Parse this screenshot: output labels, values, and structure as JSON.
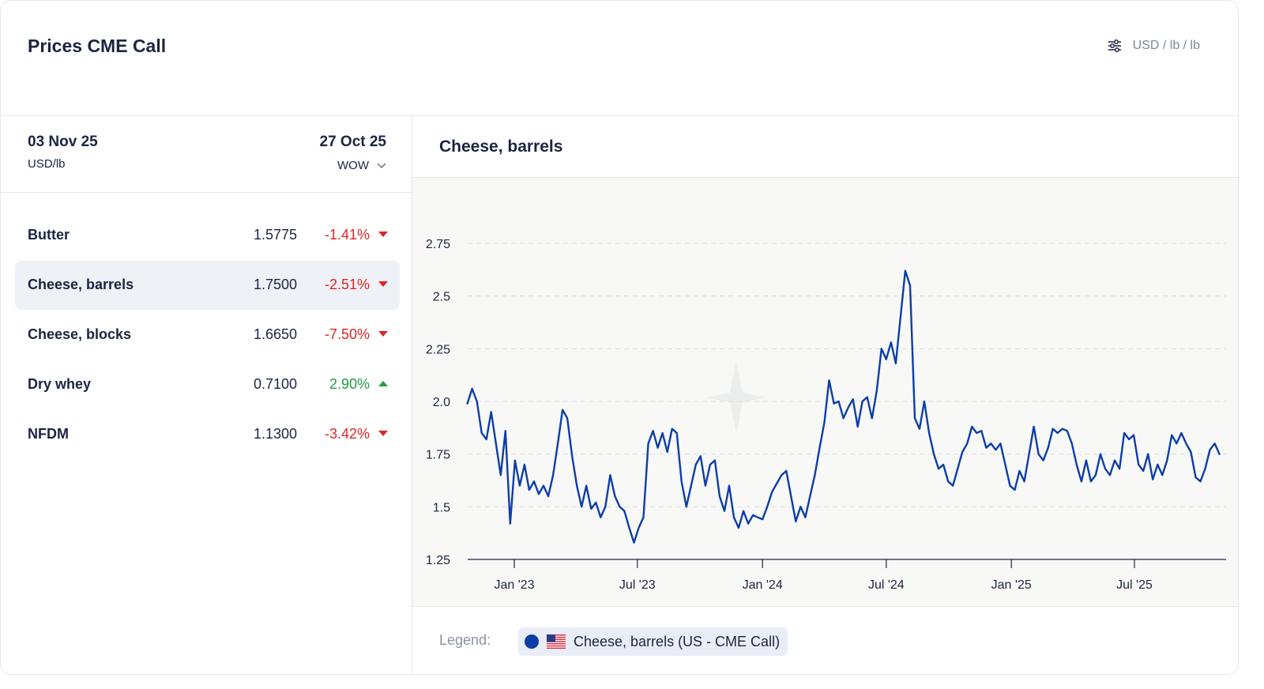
{
  "header": {
    "title": "Prices CME Call",
    "units": "USD / lb / lb"
  },
  "panel": {
    "current_date": "03 Nov 25",
    "unit": "USD/lb",
    "compare_date": "27 Oct 25",
    "compare_mode": "WOW"
  },
  "rows": [
    {
      "name": "Butter",
      "price": "1.5775",
      "change": "-1.41%",
      "direction": "down"
    },
    {
      "name": "Cheese, barrels",
      "price": "1.7500",
      "change": "-2.51%",
      "direction": "down",
      "selected": true
    },
    {
      "name": "Cheese, blocks",
      "price": "1.6650",
      "change": "-7.50%",
      "direction": "down"
    },
    {
      "name": "Dry whey",
      "price": "0.7100",
      "change": "2.90%",
      "direction": "up"
    },
    {
      "name": "NFDM",
      "price": "1.1300",
      "change": "-3.42%",
      "direction": "down"
    }
  ],
  "chart": {
    "title": "Cheese, barrels"
  },
  "legend": {
    "label": "Legend:",
    "series": "Cheese, barrels (US - CME Call)",
    "icon": "us-flag-icon"
  },
  "colors": {
    "series": "#0d3ea6",
    "negative": "#e02424",
    "positive": "#1f9d3e"
  },
  "chart_data": {
    "type": "line",
    "title": "Cheese, barrels",
    "ylim": [
      1.25,
      2.75
    ],
    "yticks": [
      "1.25",
      "1.5",
      "1.75",
      "2.0",
      "2.25",
      "2.5",
      "2.75"
    ],
    "xticks": [
      "Jan '23",
      "Jul '23",
      "Jan '24",
      "Jul '24",
      "Jan '25",
      "Jul '25"
    ],
    "xtick_dates": [
      "2023-01-01",
      "2023-07-01",
      "2024-01-01",
      "2024-07-01",
      "2025-01-01",
      "2025-07-01"
    ],
    "grid": true,
    "series": [
      {
        "name": "Cheese, barrels (US - CME Call)",
        "points": [
          [
            "2022-10-24",
            1.99
          ],
          [
            "2022-10-31",
            2.06
          ],
          [
            "2022-11-07",
            2.0
          ],
          [
            "2022-11-14",
            1.85
          ],
          [
            "2022-11-21",
            1.82
          ],
          [
            "2022-11-28",
            1.95
          ],
          [
            "2022-12-05",
            1.8
          ],
          [
            "2022-12-12",
            1.65
          ],
          [
            "2022-12-19",
            1.86
          ],
          [
            "2022-12-26",
            1.42
          ],
          [
            "2023-01-02",
            1.72
          ],
          [
            "2023-01-09",
            1.6
          ],
          [
            "2023-01-16",
            1.7
          ],
          [
            "2023-01-23",
            1.58
          ],
          [
            "2023-01-30",
            1.62
          ],
          [
            "2023-02-06",
            1.56
          ],
          [
            "2023-02-13",
            1.6
          ],
          [
            "2023-02-20",
            1.55
          ],
          [
            "2023-02-27",
            1.65
          ],
          [
            "2023-03-06",
            1.8
          ],
          [
            "2023-03-13",
            1.96
          ],
          [
            "2023-03-20",
            1.92
          ],
          [
            "2023-03-27",
            1.74
          ],
          [
            "2023-04-03",
            1.6
          ],
          [
            "2023-04-10",
            1.5
          ],
          [
            "2023-04-17",
            1.6
          ],
          [
            "2023-04-24",
            1.49
          ],
          [
            "2023-05-01",
            1.52
          ],
          [
            "2023-05-08",
            1.45
          ],
          [
            "2023-05-15",
            1.5
          ],
          [
            "2023-05-22",
            1.65
          ],
          [
            "2023-05-29",
            1.55
          ],
          [
            "2023-06-05",
            1.5
          ],
          [
            "2023-06-12",
            1.48
          ],
          [
            "2023-06-19",
            1.4
          ],
          [
            "2023-06-26",
            1.33
          ],
          [
            "2023-07-03",
            1.4
          ],
          [
            "2023-07-10",
            1.45
          ],
          [
            "2023-07-17",
            1.8
          ],
          [
            "2023-07-24",
            1.86
          ],
          [
            "2023-07-31",
            1.78
          ],
          [
            "2023-08-07",
            1.85
          ],
          [
            "2023-08-14",
            1.76
          ],
          [
            "2023-08-21",
            1.87
          ],
          [
            "2023-08-28",
            1.85
          ],
          [
            "2023-09-04",
            1.62
          ],
          [
            "2023-09-11",
            1.5
          ],
          [
            "2023-09-18",
            1.6
          ],
          [
            "2023-09-25",
            1.7
          ],
          [
            "2023-10-02",
            1.74
          ],
          [
            "2023-10-09",
            1.6
          ],
          [
            "2023-10-16",
            1.7
          ],
          [
            "2023-10-23",
            1.72
          ],
          [
            "2023-10-30",
            1.55
          ],
          [
            "2023-11-06",
            1.48
          ],
          [
            "2023-11-13",
            1.6
          ],
          [
            "2023-11-20",
            1.45
          ],
          [
            "2023-11-27",
            1.4
          ],
          [
            "2023-12-04",
            1.48
          ],
          [
            "2023-12-11",
            1.42
          ],
          [
            "2023-12-18",
            1.46
          ],
          [
            "2023-12-25",
            1.45
          ],
          [
            "2024-01-01",
            1.44
          ],
          [
            "2024-01-08",
            1.5
          ],
          [
            "2024-01-15",
            1.57
          ],
          [
            "2024-01-22",
            1.61
          ],
          [
            "2024-01-29",
            1.65
          ],
          [
            "2024-02-05",
            1.67
          ],
          [
            "2024-02-12",
            1.55
          ],
          [
            "2024-02-19",
            1.43
          ],
          [
            "2024-02-26",
            1.5
          ],
          [
            "2024-03-04",
            1.45
          ],
          [
            "2024-03-11",
            1.55
          ],
          [
            "2024-03-18",
            1.65
          ],
          [
            "2024-03-25",
            1.78
          ],
          [
            "2024-04-01",
            1.9
          ],
          [
            "2024-04-08",
            2.1
          ],
          [
            "2024-04-15",
            1.99
          ],
          [
            "2024-04-22",
            2.0
          ],
          [
            "2024-04-29",
            1.92
          ],
          [
            "2024-05-06",
            1.97
          ],
          [
            "2024-05-13",
            2.01
          ],
          [
            "2024-05-20",
            1.88
          ],
          [
            "2024-05-27",
            2.0
          ],
          [
            "2024-06-03",
            2.02
          ],
          [
            "2024-06-10",
            1.92
          ],
          [
            "2024-06-17",
            2.05
          ],
          [
            "2024-06-24",
            2.25
          ],
          [
            "2024-07-01",
            2.2
          ],
          [
            "2024-07-08",
            2.28
          ],
          [
            "2024-07-15",
            2.18
          ],
          [
            "2024-07-22",
            2.4
          ],
          [
            "2024-07-29",
            2.62
          ],
          [
            "2024-08-05",
            2.55
          ],
          [
            "2024-08-12",
            1.92
          ],
          [
            "2024-08-19",
            1.87
          ],
          [
            "2024-08-26",
            2.0
          ],
          [
            "2024-09-02",
            1.85
          ],
          [
            "2024-09-09",
            1.75
          ],
          [
            "2024-09-16",
            1.68
          ],
          [
            "2024-09-23",
            1.7
          ],
          [
            "2024-09-30",
            1.62
          ],
          [
            "2024-10-07",
            1.6
          ],
          [
            "2024-10-14",
            1.68
          ],
          [
            "2024-10-21",
            1.76
          ],
          [
            "2024-10-28",
            1.8
          ],
          [
            "2024-11-04",
            1.88
          ],
          [
            "2024-11-11",
            1.85
          ],
          [
            "2024-11-18",
            1.86
          ],
          [
            "2024-11-25",
            1.78
          ],
          [
            "2024-12-02",
            1.8
          ],
          [
            "2024-12-09",
            1.77
          ],
          [
            "2024-12-16",
            1.8
          ],
          [
            "2024-12-23",
            1.7
          ],
          [
            "2024-12-30",
            1.6
          ],
          [
            "2025-01-06",
            1.58
          ],
          [
            "2025-01-13",
            1.67
          ],
          [
            "2025-01-20",
            1.62
          ],
          [
            "2025-01-27",
            1.75
          ],
          [
            "2025-02-03",
            1.88
          ],
          [
            "2025-02-10",
            1.75
          ],
          [
            "2025-02-17",
            1.72
          ],
          [
            "2025-02-24",
            1.78
          ],
          [
            "2025-03-03",
            1.87
          ],
          [
            "2025-03-10",
            1.85
          ],
          [
            "2025-03-17",
            1.87
          ],
          [
            "2025-03-24",
            1.86
          ],
          [
            "2025-03-31",
            1.8
          ],
          [
            "2025-04-07",
            1.7
          ],
          [
            "2025-04-14",
            1.62
          ],
          [
            "2025-04-21",
            1.72
          ],
          [
            "2025-04-28",
            1.62
          ],
          [
            "2025-05-05",
            1.65
          ],
          [
            "2025-05-12",
            1.75
          ],
          [
            "2025-05-19",
            1.68
          ],
          [
            "2025-05-26",
            1.65
          ],
          [
            "2025-06-02",
            1.72
          ],
          [
            "2025-06-09",
            1.68
          ],
          [
            "2025-06-16",
            1.85
          ],
          [
            "2025-06-23",
            1.82
          ],
          [
            "2025-06-30",
            1.84
          ],
          [
            "2025-07-07",
            1.7
          ],
          [
            "2025-07-14",
            1.67
          ],
          [
            "2025-07-21",
            1.75
          ],
          [
            "2025-07-28",
            1.63
          ],
          [
            "2025-08-04",
            1.7
          ],
          [
            "2025-08-11",
            1.65
          ],
          [
            "2025-08-18",
            1.72
          ],
          [
            "2025-08-25",
            1.84
          ],
          [
            "2025-09-01",
            1.8
          ],
          [
            "2025-09-08",
            1.85
          ],
          [
            "2025-09-15",
            1.8
          ],
          [
            "2025-09-22",
            1.76
          ],
          [
            "2025-09-29",
            1.64
          ],
          [
            "2025-10-06",
            1.62
          ],
          [
            "2025-10-13",
            1.68
          ],
          [
            "2025-10-20",
            1.77
          ],
          [
            "2025-10-27",
            1.8
          ],
          [
            "2025-11-03",
            1.75
          ]
        ]
      }
    ]
  }
}
